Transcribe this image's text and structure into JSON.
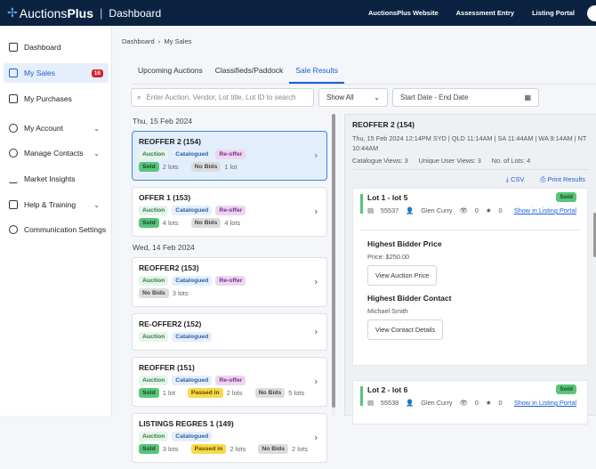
{
  "header": {
    "brand_a": "Auctions",
    "brand_b": "Plus",
    "section": "Dashboard",
    "links": [
      "AuctionsPlus Website",
      "Assessment Entry",
      "Listing Portal"
    ]
  },
  "sidebar": {
    "items": [
      {
        "label": "Dashboard"
      },
      {
        "label": "My Sales",
        "badge": "16"
      },
      {
        "label": "My Purchases"
      },
      {
        "label": "My Account"
      },
      {
        "label": "Manage Contacts"
      },
      {
        "label": "Market Insights"
      },
      {
        "label": "Help & Training"
      },
      {
        "label": "Communication Settings"
      }
    ]
  },
  "breadcrumb": [
    "Dashboard",
    "My Sales"
  ],
  "tabs": [
    "Upcoming Auctions",
    "Classifieds/Paddock",
    "Sale Results"
  ],
  "filters": {
    "search_placeholder": "Enter Auction, Vendor, Lot title, Lot ID to search",
    "show": "Show All",
    "date_placeholder": "Start Date - End Date"
  },
  "tags": {
    "auction": "Auction",
    "catalogued": "Catalogued",
    "reoffer": "Re-offer",
    "sold": "Sold",
    "nobids": "No Bids",
    "passed": "Passed in"
  },
  "groups": [
    {
      "date": "Thu, 15 Feb 2024",
      "sales": [
        {
          "title": "REOFFER 2 (154)",
          "sold": "2 lots",
          "nobids": "1 lot"
        },
        {
          "title": "OFFER 1 (153)",
          "sold": "4 lots",
          "nobids": "4 lots"
        }
      ]
    },
    {
      "date": "Wed, 14 Feb 2024",
      "sales": [
        {
          "title": "REOFFER2 (153)",
          "nobids": "3 lots"
        },
        {
          "title": "RE-OFFER2 (152)"
        },
        {
          "title": "REOFFER (151)",
          "sold": "1 lot",
          "passed": "2 lots",
          "nobids": "5 lots"
        },
        {
          "title": "LISTINGS REGRES 1 (149)",
          "sold": "3 lots",
          "passed": "2 lots",
          "nobids": "2 lots"
        }
      ]
    }
  ],
  "detail": {
    "title": "REOFFER 2 (154)",
    "times": "Thu, 15 Feb 2024 12:14PM SYD | QLD 11:14AM | SA 11:44AM | WA 9:14AM | NT 10:44AM",
    "catalogue_views": "Catalogue Views: 3",
    "unique_views": "Unique User Views: 3",
    "lots": "No. of Lots: 4",
    "csv": "CSV",
    "print": "Print Results",
    "lot_list": [
      {
        "title": "Lot 1 - lot 5",
        "status": "Sold",
        "id": "55537",
        "user": "Glen Curry",
        "views": "0",
        "stars": "0",
        "link": "Show in Listing Portal"
      },
      {
        "title": "Lot 2 - lot 6",
        "status": "Sold",
        "id": "55538",
        "user": "Glen Curry",
        "views": "0",
        "stars": "0",
        "link": "Show in Listing Portal"
      }
    ],
    "bidder": {
      "price_heading": "Highest Bidder Price",
      "price": "Price: $250.00",
      "price_btn": "View Auction Price",
      "contact_heading": "Highest Bidder Contact",
      "contact": "Michael Smith",
      "contact_btn": "View Contact Details"
    }
  }
}
